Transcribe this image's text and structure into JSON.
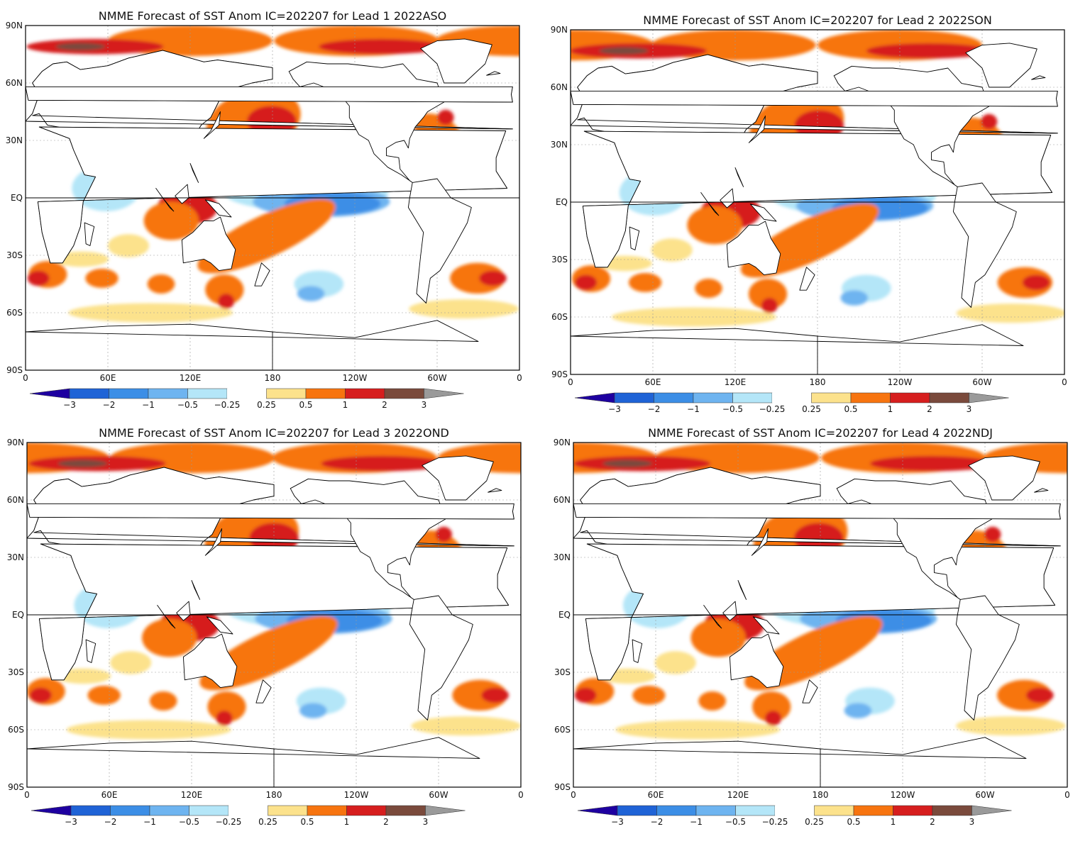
{
  "colors": {
    "land": "#ffffff",
    "coast": "#000000",
    "bins": [
      "#1e00a0",
      "#1f63d6",
      "#3c8ee6",
      "#6eb4f0",
      "#b4e6f8",
      "#ffffff",
      "#fce28c",
      "#f7740f",
      "#d61e1e",
      "#7a4a3c",
      "#9a9a9a"
    ]
  },
  "legend": {
    "labels": [
      "−3",
      "−2",
      "−1",
      "−0.5",
      "−0.25",
      "0.25",
      "0.5",
      "1",
      "2",
      "3"
    ]
  },
  "axes": {
    "lat_labels": [
      "90N",
      "60N",
      "30N",
      "EQ",
      "30S",
      "60S",
      "90S"
    ],
    "lon_labels": [
      "0",
      "60E",
      "120E",
      "180",
      "120W",
      "60W",
      "0"
    ]
  },
  "panels": [
    {
      "title": "NMME Forecast of SST Anom IC=202207 for Lead 1 2022ASO"
    },
    {
      "title": "NMME Forecast of SST Anom IC=202207 for Lead 2 2022SON"
    },
    {
      "title": "NMME Forecast of SST Anom IC=202207 for Lead 3 2022OND"
    },
    {
      "title": "NMME Forecast of SST Anom IC=202207 for Lead 4 2022NDJ"
    }
  ]
}
